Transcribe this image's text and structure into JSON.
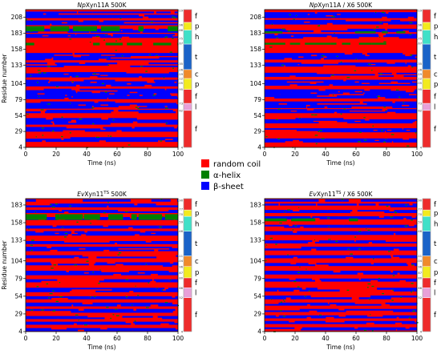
{
  "chart_data": [
    {
      "type": "heatmap",
      "title_italic": "Np",
      "title_rest": "Xyn11A 500K",
      "xlabel": "Time (ns)",
      "ylabel": "Residue number",
      "xlim": [
        0,
        100
      ],
      "ylim": [
        4,
        220
      ],
      "x_ticks": [
        0,
        20,
        40,
        60,
        80,
        100
      ],
      "y_ticks": [
        4,
        29,
        54,
        79,
        104,
        133,
        158,
        183,
        208
      ],
      "sheet_bands": [
        [
          13,
          20
        ],
        [
          29,
          36
        ],
        [
          40,
          50
        ],
        [
          58,
          63
        ],
        [
          65,
          76
        ],
        [
          80,
          96
        ],
        [
          100,
          110
        ],
        [
          114,
          122
        ],
        [
          130,
          137
        ],
        [
          141,
          152
        ],
        [
          176,
          182
        ],
        [
          184,
          190
        ],
        [
          196,
          203
        ],
        [
          207,
          217
        ]
      ],
      "helix_bands": [
        [
          164,
          168
        ],
        [
          186,
          194
        ]
      ],
      "region_labels": [
        {
          "label": "f",
          "from": 4,
          "to": 62
        },
        {
          "label": "l",
          "from": 62,
          "to": 73
        },
        {
          "label": "f",
          "from": 73,
          "to": 95
        },
        {
          "label": "p",
          "from": 95,
          "to": 112
        },
        {
          "label": "c",
          "from": 112,
          "to": 126
        },
        {
          "label": "t",
          "from": 126,
          "to": 166
        },
        {
          "label": "h",
          "from": 166,
          "to": 188
        },
        {
          "label": "p",
          "from": 188,
          "to": 200
        },
        {
          "label": "f",
          "from": 200,
          "to": 220
        }
      ],
      "boundary_ticks": [
        219,
        196,
        188,
        175,
        167,
        135,
        126,
        119,
        112,
        105,
        95,
        73,
        62,
        4
      ]
    },
    {
      "type": "heatmap",
      "title_italic": "Np",
      "title_rest": "Xyn11A / X6 500K",
      "xlabel": "Time (ns)",
      "ylabel": "",
      "xlim": [
        0,
        100
      ],
      "ylim": [
        4,
        220
      ],
      "x_ticks": [
        0,
        20,
        40,
        60,
        80,
        100
      ],
      "y_ticks": [
        4,
        29,
        54,
        79,
        104,
        133,
        158,
        183,
        208
      ],
      "sheet_bands": [
        [
          12,
          18
        ],
        [
          28,
          34
        ],
        [
          42,
          50
        ],
        [
          58,
          64
        ],
        [
          66,
          76
        ],
        [
          81,
          95
        ],
        [
          101,
          110
        ],
        [
          115,
          121
        ],
        [
          131,
          137
        ],
        [
          142,
          152
        ],
        [
          175,
          182
        ],
        [
          185,
          190
        ],
        [
          197,
          204
        ],
        [
          207,
          216
        ]
      ],
      "helix_bands": [
        [
          165,
          168
        ],
        [
          183,
          186
        ]
      ],
      "region_labels": [
        {
          "label": "f",
          "from": 4,
          "to": 62
        },
        {
          "label": "l",
          "from": 62,
          "to": 73
        },
        {
          "label": "f",
          "from": 73,
          "to": 95
        },
        {
          "label": "p",
          "from": 95,
          "to": 112
        },
        {
          "label": "c",
          "from": 112,
          "to": 126
        },
        {
          "label": "t",
          "from": 126,
          "to": 166
        },
        {
          "label": "h",
          "from": 166,
          "to": 188
        },
        {
          "label": "p",
          "from": 188,
          "to": 200
        },
        {
          "label": "f",
          "from": 200,
          "to": 220
        }
      ],
      "boundary_ticks": [
        219,
        196,
        188,
        175,
        167,
        135,
        126,
        119,
        112,
        105,
        95,
        73,
        62,
        4
      ]
    },
    {
      "type": "heatmap",
      "title_italic": "Ev",
      "title_rest": "Xyn11",
      "title_sup": "TS",
      "title_tail": " 500K",
      "xlabel": "Time (ns)",
      "ylabel": "Residue number",
      "xlim": [
        0,
        100
      ],
      "ylim": [
        4,
        192
      ],
      "x_ticks": [
        0,
        20,
        40,
        60,
        80,
        100
      ],
      "y_ticks": [
        4,
        29,
        54,
        79,
        104,
        133,
        158,
        183
      ],
      "sheet_bands": [
        [
          5,
          9
        ],
        [
          14,
          18
        ],
        [
          22,
          26
        ],
        [
          31,
          36
        ],
        [
          40,
          45
        ],
        [
          50,
          54
        ],
        [
          60,
          66
        ],
        [
          74,
          78
        ],
        [
          84,
          90
        ],
        [
          96,
          102
        ],
        [
          108,
          112
        ],
        [
          118,
          124
        ],
        [
          128,
          132
        ],
        [
          140,
          146
        ],
        [
          150,
          154
        ],
        [
          162,
          166
        ],
        [
          172,
          176
        ],
        [
          180,
          185
        ],
        [
          188,
          191
        ]
      ],
      "helix_bands": [
        [
          162,
          170
        ]
      ],
      "region_labels": [
        {
          "label": "f",
          "from": 4,
          "to": 52
        },
        {
          "label": "l",
          "from": 52,
          "to": 66
        },
        {
          "label": "f",
          "from": 66,
          "to": 80
        },
        {
          "label": "p",
          "from": 80,
          "to": 96
        },
        {
          "label": "c",
          "from": 96,
          "to": 111
        },
        {
          "label": "t",
          "from": 111,
          "to": 146
        },
        {
          "label": "h",
          "from": 146,
          "to": 167
        },
        {
          "label": "p",
          "from": 167,
          "to": 176
        },
        {
          "label": "f",
          "from": 176,
          "to": 192
        }
      ],
      "boundary_ticks": [
        190,
        177,
        170,
        159,
        146,
        111,
        104,
        96,
        87,
        80,
        66,
        52,
        4
      ]
    },
    {
      "type": "heatmap",
      "title_italic": "Ev",
      "title_rest": "Xyn11",
      "title_sup": "TS",
      "title_tail": " / X6 500K",
      "xlabel": "Time (ns)",
      "ylabel": "",
      "xlim": [
        0,
        100
      ],
      "ylim": [
        4,
        192
      ],
      "x_ticks": [
        0,
        20,
        40,
        60,
        80,
        100
      ],
      "y_ticks": [
        4,
        29,
        54,
        79,
        104,
        133,
        158,
        183
      ],
      "sheet_bands": [
        [
          6,
          10
        ],
        [
          15,
          19
        ],
        [
          23,
          27
        ],
        [
          32,
          36
        ],
        [
          41,
          45
        ],
        [
          50,
          55
        ],
        [
          61,
          66
        ],
        [
          75,
          79
        ],
        [
          85,
          90
        ],
        [
          97,
          101
        ],
        [
          108,
          112
        ],
        [
          119,
          124
        ],
        [
          129,
          133
        ],
        [
          141,
          146
        ],
        [
          151,
          155
        ],
        [
          163,
          167
        ],
        [
          172,
          176
        ],
        [
          180,
          185
        ],
        [
          188,
          191
        ]
      ],
      "helix_bands": [
        [
          160,
          164
        ]
      ],
      "region_labels": [
        {
          "label": "f",
          "from": 4,
          "to": 52
        },
        {
          "label": "l",
          "from": 52,
          "to": 66
        },
        {
          "label": "f",
          "from": 66,
          "to": 80
        },
        {
          "label": "p",
          "from": 80,
          "to": 96
        },
        {
          "label": "c",
          "from": 96,
          "to": 111
        },
        {
          "label": "t",
          "from": 111,
          "to": 146
        },
        {
          "label": "h",
          "from": 146,
          "to": 167
        },
        {
          "label": "p",
          "from": 167,
          "to": 176
        },
        {
          "label": "f",
          "from": 176,
          "to": 192
        }
      ],
      "boundary_ticks": [
        190,
        177,
        170,
        159,
        146,
        111,
        104,
        96,
        87,
        80,
        66,
        52,
        4
      ]
    }
  ],
  "legend": {
    "items": [
      {
        "label": "random coil",
        "color": "#ff0000"
      },
      {
        "label": "α-helix",
        "color": "#008000"
      },
      {
        "label": "β-sheet",
        "color": "#0000ff"
      }
    ]
  },
  "region_colors": {
    "f": "#ee2b2b",
    "l": "#e8a0d8",
    "p": "#f2ea1e",
    "c": "#f08a2a",
    "t": "#1a63c8",
    "h": "#40e0c8"
  }
}
